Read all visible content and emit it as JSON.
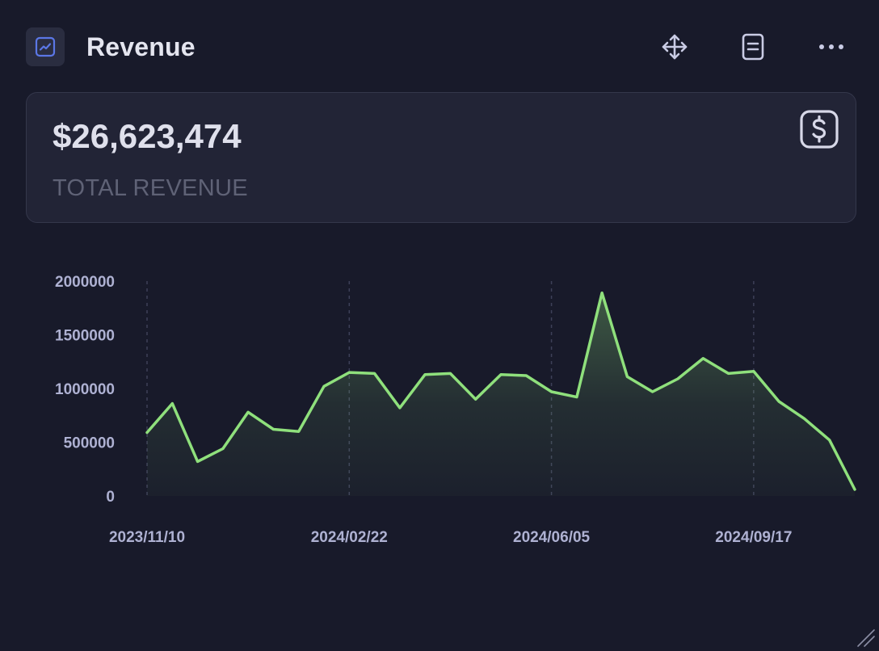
{
  "header": {
    "title": "Revenue",
    "icons": {
      "app": "line-chart-icon",
      "move": "move-arrows-icon",
      "notes": "document-icon",
      "more": "more-dots-icon"
    }
  },
  "kpi": {
    "value": "$26,623,474",
    "label": "TOTAL REVENUE",
    "icon": "dollar-icon"
  },
  "colors": {
    "background": "#181a2a",
    "card": "#222436",
    "line": "#8fe07c",
    "accent": "#5b77e6",
    "text_primary": "#e4e5ef",
    "text_muted": "#5f6276",
    "axis_text": "#aeb1d2"
  },
  "chart_data": {
    "type": "area",
    "x": [
      "2023/11/10",
      "2023/11/24",
      "2023/12/08",
      "2023/12/22",
      "2024/01/05",
      "2024/01/19",
      "2024/02/02",
      "2024/02/08",
      "2024/02/22",
      "2024/03/07",
      "2024/03/21",
      "2024/04/04",
      "2024/04/18",
      "2024/05/02",
      "2024/05/16",
      "2024/05/30",
      "2024/06/05",
      "2024/06/19",
      "2024/07/03",
      "2024/07/17",
      "2024/07/31",
      "2024/08/14",
      "2024/08/28",
      "2024/09/11",
      "2024/09/17",
      "2024/10/01",
      "2024/10/15",
      "2024/10/29",
      "2024/11/12"
    ],
    "series": [
      {
        "values": [
          590000,
          860000,
          320000,
          440000,
          780000,
          620000,
          600000,
          1020000,
          1150000,
          1140000,
          820000,
          1130000,
          1140000,
          900000,
          1130000,
          1120000,
          970000,
          920000,
          1890000,
          1110000,
          970000,
          1090000,
          1280000,
          1140000,
          1160000,
          880000,
          720000,
          520000,
          60000
        ]
      }
    ],
    "xticks": [
      "2023/11/10",
      "2024/02/22",
      "2024/06/05",
      "2024/09/17"
    ],
    "yticks": [
      "0",
      "500000",
      "1000000",
      "1500000",
      "2000000"
    ],
    "ylim": [
      0,
      2000000
    ],
    "grid": "vertical-dashed",
    "xlabel": "",
    "ylabel": ""
  }
}
